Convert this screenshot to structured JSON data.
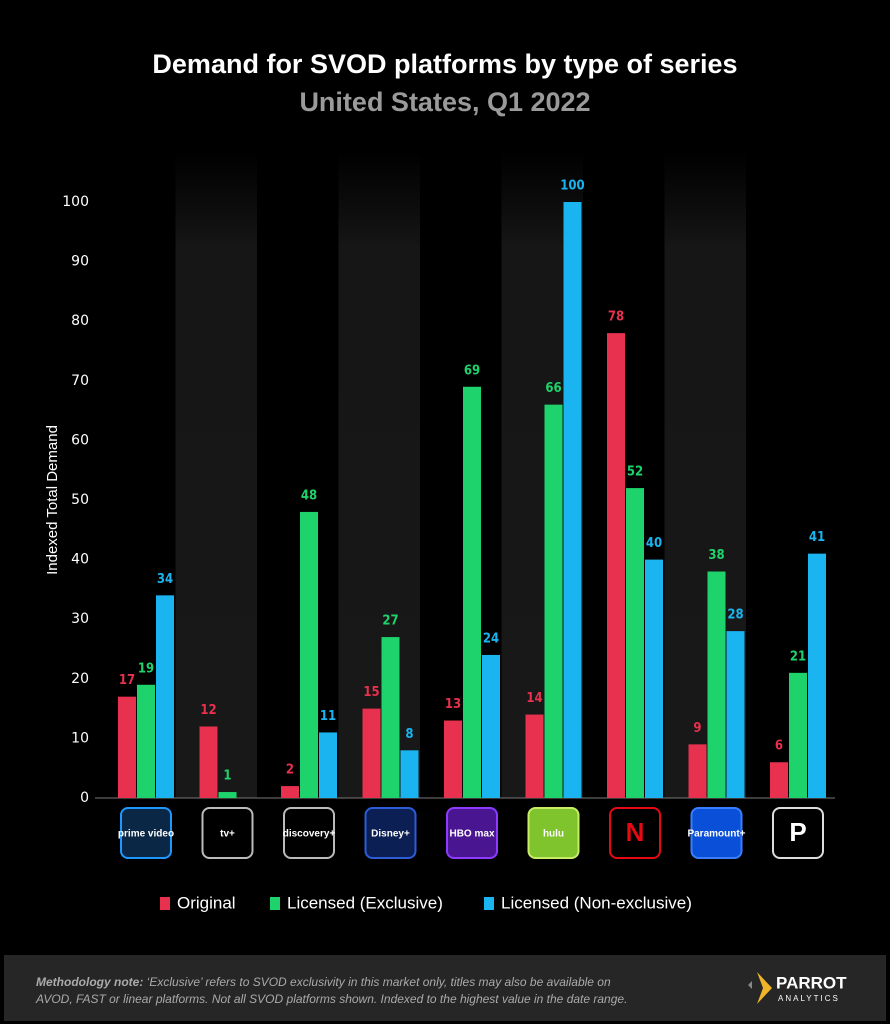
{
  "chart_data": {
    "type": "bar",
    "title": "Demand for SVOD platforms by type of series",
    "subtitle": "United States, Q1 2022",
    "y_label": "Indexed Total Demand",
    "categories": [
      "prime video",
      "tv+",
      "discovery+",
      "Disney+",
      "HBO max",
      "hulu",
      "N",
      "Paramount+",
      "P"
    ],
    "series": [
      {
        "name": "Original",
        "color": "#e8304f",
        "values": [
          17,
          12,
          2,
          15,
          13,
          14,
          78,
          9,
          6
        ]
      },
      {
        "name": "Licensed (Exclusive)",
        "color": "#1ed36c",
        "values": [
          19,
          1,
          48,
          27,
          69,
          66,
          52,
          38,
          21
        ]
      },
      {
        "name": "Licensed (Non-exclusive)",
        "color": "#1ab4f0",
        "values": [
          34,
          null,
          11,
          8,
          24,
          100,
          40,
          28,
          41
        ]
      }
    ],
    "ylim": [
      0,
      100
    ],
    "yticks": [
      0,
      10,
      20,
      30,
      40,
      50,
      60,
      70,
      80,
      90,
      100
    ],
    "footer": {
      "note_label": "Methodology note:",
      "note_lines": [
        "‘Exclusive’ refers to SVOD exclusivity in this market only, titles may also be available on",
        "AVOD, FAST or linear platforms. Not all SVOD platforms shown. Indexed to the highest value in the date range."
      ],
      "brand": "PARROT",
      "brand_sub": "ANALYTICS"
    }
  }
}
